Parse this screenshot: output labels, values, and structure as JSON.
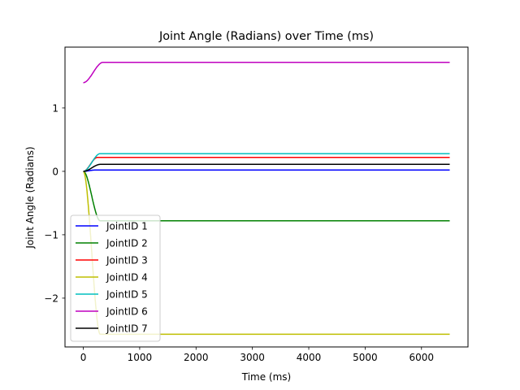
{
  "chart_data": {
    "type": "line",
    "title": "Joint Angle (Radians) over Time (ms)",
    "xlabel": "Time (ms)",
    "ylabel": "Joint Angle (Radians)",
    "xlim": [
      -325,
      6825
    ],
    "ylim": [
      -2.77,
      1.96
    ],
    "xticks": [
      0,
      1000,
      2000,
      3000,
      4000,
      5000,
      6000
    ],
    "xtick_labels": [
      "0",
      "1000",
      "2000",
      "3000",
      "4000",
      "5000",
      "6000"
    ],
    "yticks": [
      1,
      0,
      -1,
      -2
    ],
    "ytick_labels": [
      "1",
      "0",
      "−1",
      "−2"
    ],
    "grid": false,
    "legend_position": "lower-left",
    "series": [
      {
        "name": "JointID 1",
        "color": "#0000ff",
        "start": 0.0,
        "end": 0.02,
        "settle_ms": 200,
        "tail_ms": 6500
      },
      {
        "name": "JointID 2",
        "color": "#008000",
        "start": 0.0,
        "end": -0.78,
        "settle_ms": 300,
        "tail_ms": 6500
      },
      {
        "name": "JointID 3",
        "color": "#ff0000",
        "start": 0.0,
        "end": 0.22,
        "settle_ms": 250,
        "tail_ms": 6500
      },
      {
        "name": "JointID 4",
        "color": "#bfbf00",
        "start": 0.0,
        "end": -2.57,
        "settle_ms": 300,
        "tail_ms": 6500
      },
      {
        "name": "JointID 5",
        "color": "#00bfbf",
        "start": 0.0,
        "end": 0.28,
        "settle_ms": 300,
        "tail_ms": 6500
      },
      {
        "name": "JointID 6",
        "color": "#bf00bf",
        "start": 1.4,
        "end": 1.72,
        "settle_ms": 350,
        "tail_ms": 6500
      },
      {
        "name": "JointID 7",
        "color": "#000000",
        "start": 0.0,
        "end": 0.11,
        "settle_ms": 300,
        "tail_ms": 6500
      }
    ]
  }
}
